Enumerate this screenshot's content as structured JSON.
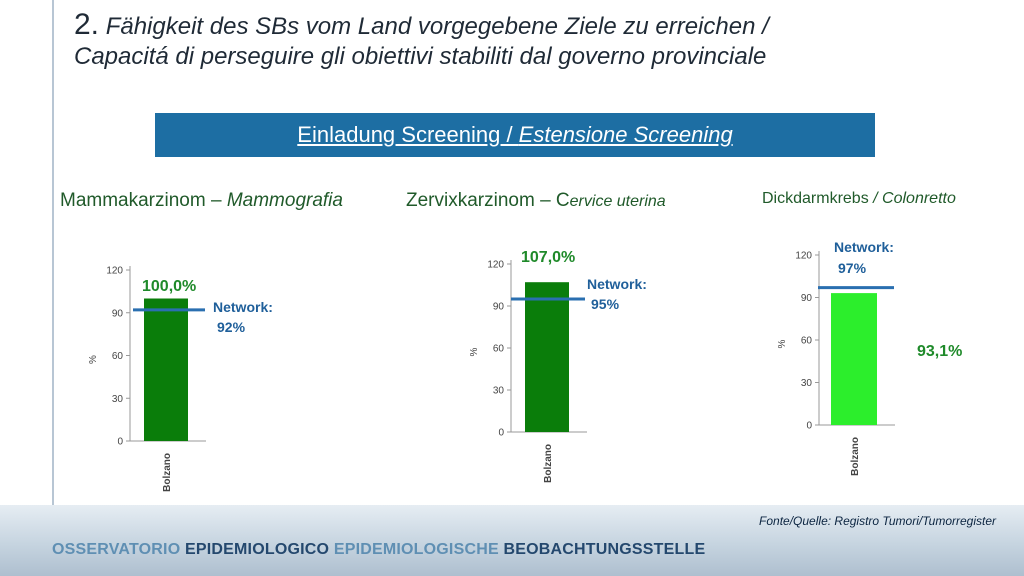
{
  "slide": {
    "title_number": "2.",
    "title_de": "Fähigkeit des SBs vom Land vorgegebene Ziele zu erreichen /",
    "title_it": "Capacitá di perseguire gli obiettivi stabiliti dal governo provinciale",
    "banner_de": "Einladung Screening / ",
    "banner_it": "Estensione Screening",
    "source": "Fonte/Quelle: Registro Tumori/Tumorregister",
    "org_1": "OSSERVATORIO",
    "org_2": "EPIDEMIOLOGICO",
    "org_3": "EPIDEMIOLOGISCHE",
    "org_4": "BEOBACHTUNGSSTELLE",
    "colors": {
      "banner": "#1d6ea3",
      "bar_dark": "#0a7d0a",
      "bar_light": "#2cee2c",
      "network_line": "#2a6fb0"
    }
  },
  "chart_data": [
    {
      "type": "bar",
      "heading_de": "Mammakarzinom – ",
      "heading_it": "Mammografia",
      "categories": [
        "Bolzano"
      ],
      "values": [
        100.0
      ],
      "value_label": "100,0%",
      "network_value": 92,
      "network_label_1": "Network:",
      "network_label_2": "92%",
      "ylabel": "%",
      "ylim": [
        0,
        120
      ],
      "yticks": [
        "0",
        "30",
        "60",
        "90",
        "120"
      ],
      "bar_color": "#0a7d0a"
    },
    {
      "type": "bar",
      "heading_de": "Zervixkarzinom – C",
      "heading_it": "ervice uterina",
      "categories": [
        "Bolzano"
      ],
      "values": [
        107.0
      ],
      "value_label": "107,0%",
      "network_value": 95,
      "network_label_1": "Network:",
      "network_label_2": "95%",
      "ylabel": "%",
      "ylim": [
        0,
        120
      ],
      "yticks": [
        "0",
        "30",
        "60",
        "90",
        "120"
      ],
      "bar_color": "#0a7d0a"
    },
    {
      "type": "bar",
      "heading_de": "Dickdarmkrebs ",
      "heading_it": "/ Colonretto",
      "categories": [
        "Bolzano"
      ],
      "values": [
        93.1
      ],
      "value_label": "93,1%",
      "network_value": 97,
      "network_label_1": "Network:",
      "network_label_2": "97%",
      "ylabel": "%",
      "ylim": [
        0,
        120
      ],
      "yticks": [
        "0",
        "30",
        "60",
        "90",
        "120"
      ],
      "bar_color": "#2cee2c"
    }
  ]
}
